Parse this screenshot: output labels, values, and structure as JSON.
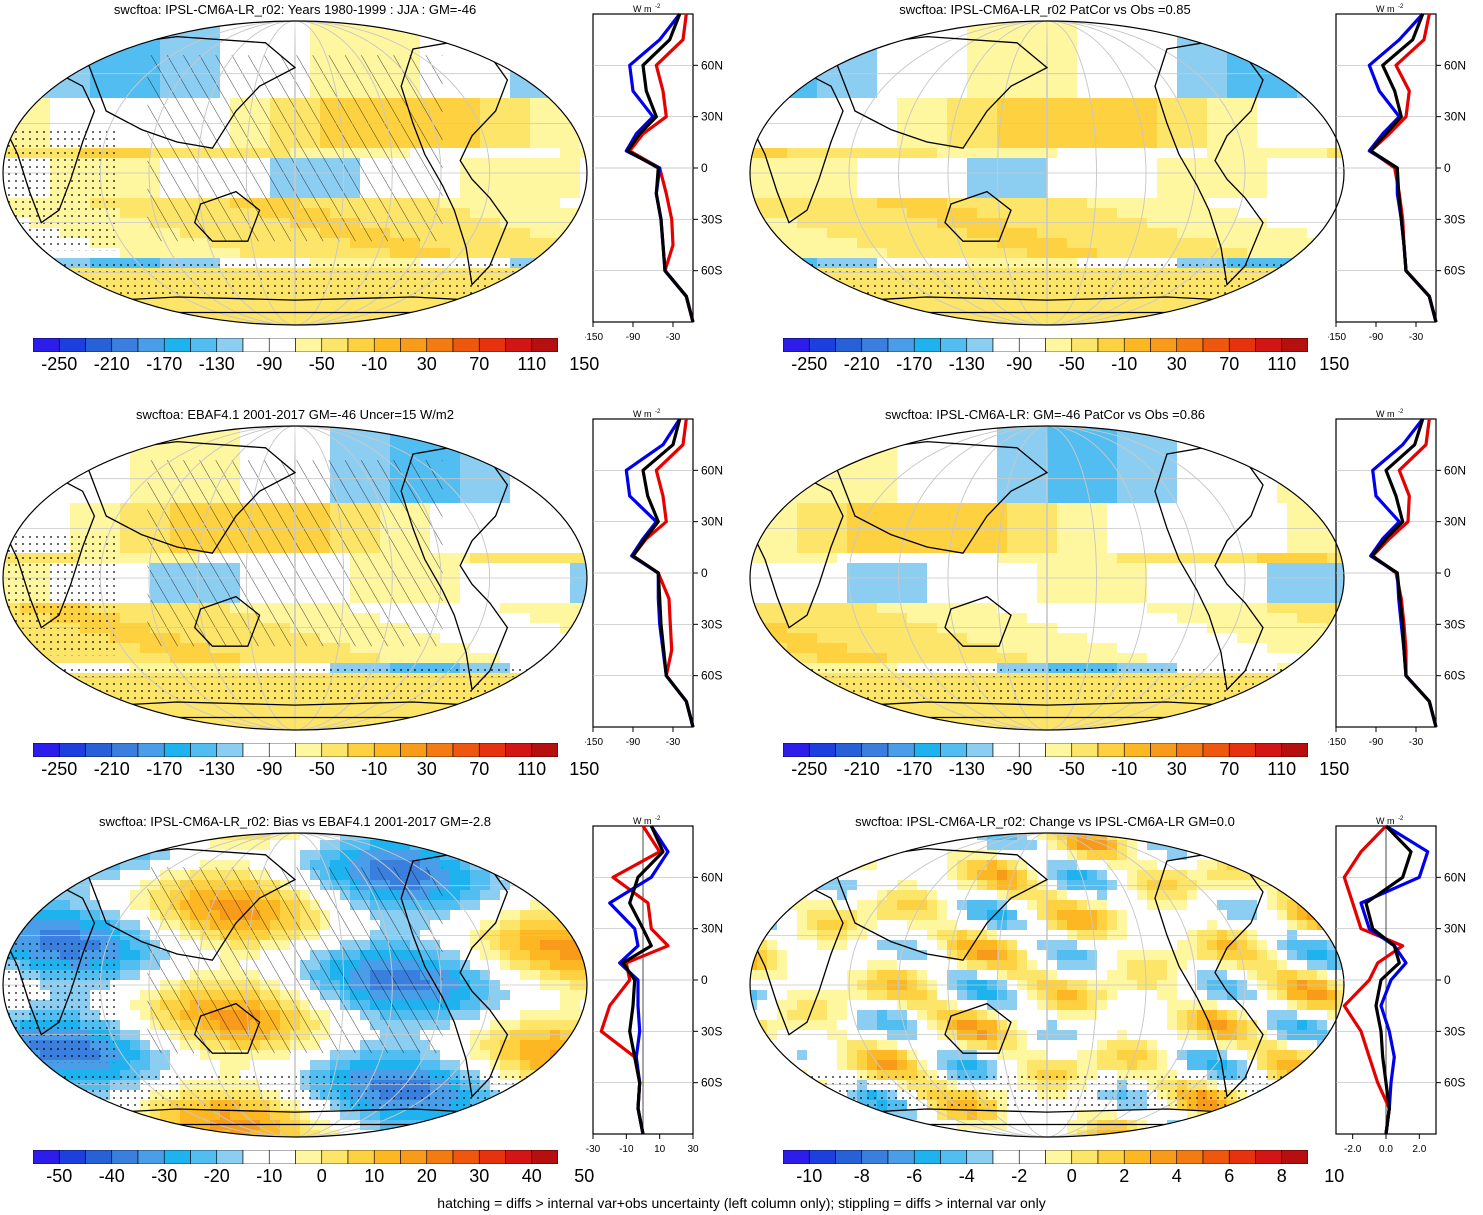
{
  "footer": "hatching = diffs > internal var+obs uncertainty (left column only); stippling = diffs > internal var only",
  "palette": [
    "#2c1dea",
    "#1e3fe0",
    "#2860d8",
    "#3a7fde",
    "#4a9de8",
    "#1eb3ee",
    "#51bdf0",
    "#8ccef2",
    "#ffffff",
    "#ffffff",
    "#fff6a0",
    "#fde56a",
    "#fdd13f",
    "#fcb723",
    "#f89a1a",
    "#f47a12",
    "#ef570f",
    "#e6320f",
    "#d41515",
    "#b60f0f"
  ],
  "profile_colors": {
    "model": "#e60000",
    "obs": "#0000ee",
    "ensemble": "#000000"
  },
  "lat_labels": [
    "60N",
    "30N",
    "0",
    "30S",
    "60S"
  ],
  "unit_label": "W m",
  "unit_sup": "-2",
  "panels": [
    {
      "id": "p1",
      "title": "swcftoa: IPSL-CM6A-LR_r02: Years 1980-1999 : JJA : GM=-46",
      "cbar_labels": [
        "-250",
        "-210",
        "-170",
        "-130",
        "-90",
        "-50",
        "-10",
        "30",
        "70",
        "110",
        "150"
      ],
      "profile_xticks": [
        "-150",
        "-90",
        "-30"
      ],
      "hatched": true,
      "field": "mean"
    },
    {
      "id": "p2",
      "title": "swcftoa: IPSL-CM6A-LR_r02 PatCor vs Obs =0.85",
      "cbar_labels": [
        "-250",
        "-210",
        "-170",
        "-130",
        "-90",
        "-50",
        "-10",
        "30",
        "70",
        "110",
        "150"
      ],
      "profile_xticks": [
        "-150",
        "-90",
        "-30"
      ],
      "hatched": false,
      "field": "mean"
    },
    {
      "id": "p3",
      "title": "swcftoa: EBAF4.1 2001-2017 GM=-46 Uncer=15 W/m2",
      "cbar_labels": [
        "-250",
        "-210",
        "-170",
        "-130",
        "-90",
        "-50",
        "-10",
        "30",
        "70",
        "110",
        "150"
      ],
      "profile_xticks": [
        "-150",
        "-90",
        "-30"
      ],
      "hatched": true,
      "field": "mean"
    },
    {
      "id": "p4",
      "title": "swcftoa: IPSL-CM6A-LR: GM=-46 PatCor vs Obs =0.86",
      "cbar_labels": [
        "-250",
        "-210",
        "-170",
        "-130",
        "-90",
        "-50",
        "-10",
        "30",
        "70",
        "110",
        "150"
      ],
      "profile_xticks": [
        "-150",
        "-90",
        "-30"
      ],
      "hatched": false,
      "field": "mean"
    },
    {
      "id": "p5",
      "title": "swcftoa: IPSL-CM6A-LR_r02: Bias vs EBAF4.1 2001-2017 GM=-2.8",
      "cbar_labels": [
        "-50",
        "-40",
        "-30",
        "-20",
        "-10",
        "0",
        "10",
        "20",
        "30",
        "40",
        "50"
      ],
      "profile_xticks": [
        "-30",
        "-10",
        "10",
        "30"
      ],
      "hatched": true,
      "field": "bias"
    },
    {
      "id": "p6",
      "title": "swcftoa: IPSL-CM6A-LR_r02: Change vs IPSL-CM6A-LR GM=0.0",
      "cbar_labels": [
        "-10",
        "-8",
        "-6",
        "-4",
        "-2",
        "0",
        "2",
        "4",
        "6",
        "8",
        "10"
      ],
      "profile_xticks": [
        "-2.0",
        "0.0",
        "2.0"
      ],
      "hatched": false,
      "field": "change"
    }
  ],
  "chart_data": [
    {
      "type": "line",
      "title": "swcftoa: IPSL-CM6A-LR_r02: Years 1980-1999 : JJA : GM=-46",
      "ylabel": "",
      "xlim": [
        -150,
        0
      ],
      "ylim": [
        -90,
        90
      ],
      "y": [
        -90,
        -75,
        -60,
        -45,
        -30,
        -15,
        0,
        10,
        20,
        30,
        45,
        60,
        75,
        90
      ],
      "series": [
        {
          "color": "red",
          "values": [
            0,
            -10,
            -42,
            -30,
            -32,
            -40,
            -50,
            -95,
            -75,
            -40,
            -45,
            -55,
            -15,
            -10
          ]
        },
        {
          "color": "blue",
          "values": [
            0,
            -10,
            -42,
            -45,
            -48,
            -55,
            -50,
            -100,
            -85,
            -60,
            -90,
            -95,
            -50,
            -20
          ]
        },
        {
          "color": "black",
          "values": [
            0,
            -10,
            -42,
            -45,
            -48,
            -55,
            -52,
            -98,
            -80,
            -55,
            -70,
            -75,
            -35,
            -20
          ]
        }
      ]
    },
    {
      "type": "line",
      "title": "swcftoa: IPSL-CM6A-LR_r02 PatCor vs Obs =0.85",
      "ylabel": "",
      "xlim": [
        -150,
        0
      ],
      "ylim": [
        -90,
        90
      ],
      "y": [
        -90,
        -75,
        -60,
        -45,
        -30,
        -15,
        0,
        10,
        20,
        30,
        45,
        60,
        75,
        90
      ],
      "series": [
        {
          "color": "red",
          "values": [
            0,
            -10,
            -45,
            -48,
            -50,
            -55,
            -62,
            -98,
            -70,
            -45,
            -40,
            -60,
            -18,
            -10
          ]
        },
        {
          "color": "blue",
          "values": [
            0,
            -10,
            -45,
            -48,
            -52,
            -58,
            -58,
            -100,
            -80,
            -55,
            -85,
            -100,
            -55,
            -20
          ]
        },
        {
          "color": "black",
          "values": [
            0,
            -10,
            -45,
            -48,
            -52,
            -56,
            -58,
            -98,
            -75,
            -52,
            -62,
            -80,
            -35,
            -20
          ]
        }
      ]
    },
    {
      "type": "line",
      "title": "swcftoa: EBAF4.1 2001-2017 GM=-46 Uncer=15 W/m2",
      "ylabel": "",
      "xlim": [
        -150,
        0
      ],
      "ylim": [
        -90,
        90
      ],
      "y": [
        -90,
        -75,
        -60,
        -45,
        -30,
        -15,
        0,
        10,
        20,
        30,
        45,
        60,
        75,
        90
      ],
      "series": [
        {
          "color": "red",
          "values": [
            0,
            -10,
            -40,
            -32,
            -34,
            -36,
            -52,
            -90,
            -70,
            -40,
            -45,
            -55,
            -15,
            -10
          ]
        },
        {
          "color": "blue",
          "values": [
            0,
            -10,
            -40,
            -45,
            -50,
            -52,
            -52,
            -92,
            -75,
            -55,
            -95,
            -100,
            -45,
            -20
          ]
        },
        {
          "color": "black",
          "values": [
            0,
            -10,
            -40,
            -44,
            -48,
            -50,
            -52,
            -90,
            -72,
            -52,
            -68,
            -75,
            -30,
            -20
          ]
        }
      ]
    },
    {
      "type": "line",
      "title": "swcftoa: IPSL-CM6A-LR: GM=-46 PatCor vs Obs =0.86",
      "ylabel": "",
      "xlim": [
        -150,
        0
      ],
      "ylim": [
        -90,
        90
      ],
      "y": [
        -90,
        -75,
        -60,
        -45,
        -30,
        -15,
        0,
        10,
        20,
        30,
        45,
        60,
        75,
        90
      ],
      "series": [
        {
          "color": "red",
          "values": [
            0,
            -10,
            -45,
            -45,
            -48,
            -52,
            -60,
            -95,
            -70,
            -42,
            -40,
            -55,
            -15,
            -10
          ]
        },
        {
          "color": "blue",
          "values": [
            0,
            -10,
            -45,
            -48,
            -52,
            -56,
            -58,
            -98,
            -80,
            -55,
            -90,
            -95,
            -50,
            -20
          ]
        },
        {
          "color": "black",
          "values": [
            0,
            -10,
            -45,
            -48,
            -50,
            -54,
            -58,
            -96,
            -75,
            -50,
            -60,
            -75,
            -32,
            -20
          ]
        }
      ]
    },
    {
      "type": "line",
      "title": "swcftoa: IPSL-CM6A-LR_r02: Bias vs EBAF4.1 2001-2017 GM=-2.8",
      "ylabel": "",
      "xlim": [
        -30,
        30
      ],
      "ylim": [
        -90,
        90
      ],
      "y": [
        -90,
        -75,
        -60,
        -45,
        -30,
        -15,
        0,
        10,
        20,
        30,
        45,
        60,
        75,
        90
      ],
      "series": [
        {
          "color": "red",
          "values": [
            0,
            -3,
            -2,
            -5,
            -25,
            -20,
            -8,
            -10,
            15,
            5,
            3,
            -18,
            10,
            0
          ]
        },
        {
          "color": "blue",
          "values": [
            0,
            -3,
            -2,
            -4,
            -2,
            -3,
            -3,
            -14,
            -3,
            -5,
            -20,
            5,
            15,
            5
          ]
        },
        {
          "color": "black",
          "values": [
            0,
            -3,
            -2,
            -5,
            -8,
            -6,
            -5,
            -12,
            5,
            0,
            -8,
            -3,
            12,
            5
          ]
        }
      ]
    },
    {
      "type": "line",
      "title": "swcftoa: IPSL-CM6A-LR_r02: Change vs IPSL-CM6A-LR GM=0.0",
      "ylabel": "",
      "xlim": [
        -3,
        3
      ],
      "ylim": [
        -90,
        90
      ],
      "y": [
        -90,
        -75,
        -60,
        -45,
        -30,
        -15,
        0,
        10,
        20,
        30,
        45,
        60,
        75,
        90
      ],
      "series": [
        {
          "color": "red",
          "values": [
            0,
            0.2,
            -0.5,
            -1.0,
            -1.5,
            -2.5,
            -1.0,
            -0.5,
            1.0,
            -1.5,
            -2.0,
            -2.5,
            -1.5,
            0
          ]
        },
        {
          "color": "blue",
          "values": [
            0,
            0.2,
            0.3,
            0.5,
            0.2,
            -0.3,
            0.3,
            1.2,
            0.5,
            -1.0,
            -1.5,
            2.0,
            2.5,
            0
          ]
        },
        {
          "color": "black",
          "values": [
            0,
            0.2,
            0,
            -0.2,
            -0.3,
            -0.6,
            -0.3,
            0.8,
            0.5,
            -0.8,
            -1.2,
            1.0,
            1.5,
            0
          ]
        }
      ]
    }
  ]
}
